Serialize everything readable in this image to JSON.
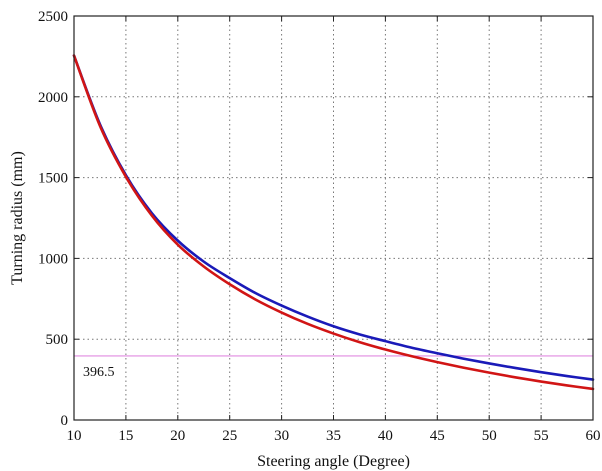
{
  "chart_data": {
    "type": "line",
    "title": "",
    "xlabel": "Steering angle (Degree)",
    "ylabel": "Turning radius (mm)",
    "xlim": [
      10,
      60
    ],
    "ylim": [
      0,
      2500
    ],
    "xticks": [
      10,
      15,
      20,
      25,
      30,
      35,
      40,
      45,
      50,
      55,
      60
    ],
    "yticks": [
      0,
      500,
      1000,
      1500,
      2000,
      2500
    ],
    "grid": true,
    "legend": "none",
    "x": [
      10,
      12.5,
      15,
      17.5,
      20,
      22.5,
      25,
      27.5,
      30,
      32.5,
      35,
      37.5,
      40,
      42.5,
      45,
      47.5,
      50,
      52.5,
      55,
      57.5,
      60
    ],
    "series": [
      {
        "color": "#1a1ab8",
        "values": [
          2255,
          1830,
          1515,
          1280,
          1110,
          980,
          878,
          785,
          708,
          640,
          580,
          530,
          488,
          448,
          413,
          380,
          350,
          322,
          296,
          272,
          250
        ]
      },
      {
        "color": "#d11515",
        "values": [
          2255,
          1820,
          1505,
          1265,
          1085,
          950,
          840,
          745,
          665,
          595,
          535,
          482,
          436,
          395,
          358,
          324,
          293,
          264,
          238,
          214,
          192
        ]
      }
    ],
    "reference_line": {
      "value": 396.5,
      "label": "396.5",
      "color": "#e08be0"
    }
  }
}
